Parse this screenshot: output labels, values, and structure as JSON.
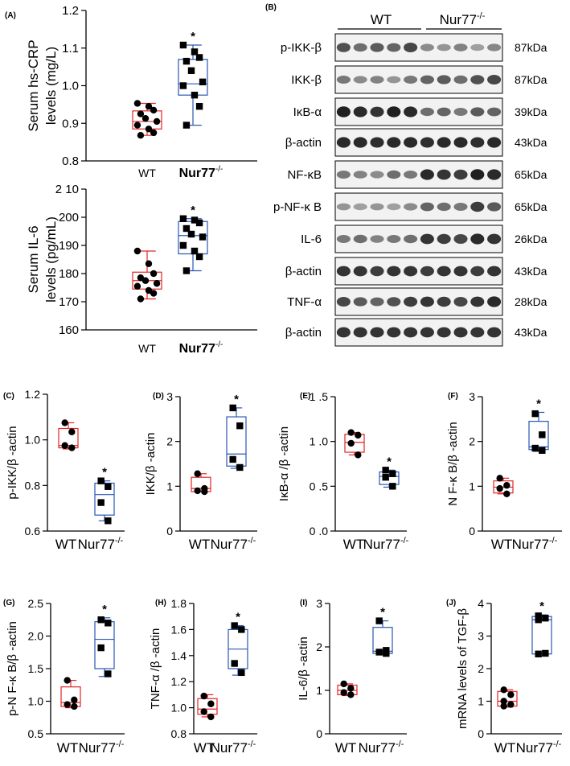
{
  "chart_data": [
    {
      "id": "A1",
      "panel_label": "(A)",
      "type": "box",
      "ylabel": [
        "Serum hs-CRP",
        "levels (mg/L)"
      ],
      "ylim": [
        0.8,
        1.2
      ],
      "yticks": [
        0.8,
        0.9,
        1.0,
        1.1,
        1.2
      ],
      "yticklabels": [
        "0.8",
        "0.9",
        "1.0",
        "1.1",
        "1.2"
      ],
      "categories": [
        "WT",
        "Nur77"
      ],
      "series": [
        {
          "category": "WT",
          "color": "#e32626",
          "marker": "circle",
          "box": {
            "q1": 0.885,
            "median": 0.905,
            "q3": 0.933,
            "whisker_low": 0.868,
            "whisker_high": 0.953
          },
          "points": [
            0.953,
            0.945,
            0.935,
            0.925,
            0.913,
            0.905,
            0.895,
            0.885,
            0.875,
            0.868
          ]
        },
        {
          "category": "Nur77",
          "color": "#2a56b5",
          "marker": "square",
          "box": {
            "q1": 0.975,
            "median": 1.005,
            "q3": 1.07,
            "whisker_low": 0.895,
            "whisker_high": 1.108
          },
          "points": [
            1.108,
            1.09,
            1.075,
            1.065,
            1.04,
            1.01,
            1.0,
            0.975,
            0.945,
            0.895
          ]
        }
      ],
      "significance": "*"
    },
    {
      "id": "A2",
      "panel_label": "",
      "type": "box",
      "ylabel": [
        "Serum IL-6",
        "levels (pg/mL)"
      ],
      "ylim": [
        160,
        210
      ],
      "yticks": [
        160,
        170,
        180,
        190,
        200,
        210
      ],
      "yticklabels": [
        "160",
        "170",
        "180",
        "190",
        "200",
        "2 10"
      ],
      "categories": [
        "WT",
        "Nur77"
      ],
      "series": [
        {
          "category": "WT",
          "color": "#e32626",
          "marker": "circle",
          "box": {
            "q1": 174.5,
            "median": 177.5,
            "q3": 180.5,
            "whisker_low": 171,
            "whisker_high": 188
          },
          "points": [
            188,
            183.5,
            180,
            178.5,
            177.5,
            176.5,
            175.5,
            174,
            173,
            171
          ]
        },
        {
          "category": "Nur77",
          "color": "#2a56b5",
          "marker": "square",
          "box": {
            "q1": 187,
            "median": 193.5,
            "q3": 198.5,
            "whisker_low": 181,
            "whisker_high": 199.5
          },
          "points": [
            199.5,
            199,
            198,
            196,
            194,
            193,
            190,
            188,
            186,
            181
          ]
        }
      ],
      "significance": "*"
    },
    {
      "id": "C",
      "panel_label": "(C)",
      "type": "box",
      "ylabel": [
        "p-IKK/β -actin"
      ],
      "ylim": [
        0.6,
        1.2
      ],
      "yticks": [
        0.6,
        0.8,
        1.0,
        1.2
      ],
      "yticklabels": [
        "0.6",
        "0.8",
        "1.0",
        "1.2"
      ],
      "categories": [
        "WT",
        "Nur77"
      ],
      "series": [
        {
          "category": "WT",
          "color": "#e32626",
          "marker": "circle",
          "box": {
            "q1": 0.965,
            "median": 0.975,
            "q3": 1.05,
            "whisker_low": 0.96,
            "whisker_high": 1.075
          },
          "points": [
            1.075,
            1.035,
            0.975,
            0.965
          ]
        },
        {
          "category": "Nur77",
          "color": "#2a56b5",
          "marker": "square",
          "box": {
            "q1": 0.67,
            "median": 0.76,
            "q3": 0.81,
            "whisker_low": 0.645,
            "whisker_high": 0.82
          },
          "points": [
            0.82,
            0.795,
            0.725,
            0.645
          ]
        }
      ],
      "significance": "*"
    },
    {
      "id": "D",
      "panel_label": "(D)",
      "type": "box",
      "ylabel": [
        "IKK/β -actin"
      ],
      "ylim": [
        0,
        3
      ],
      "yticks": [
        0,
        1,
        2,
        3
      ],
      "yticklabels": [
        "0",
        "1",
        "2",
        "3"
      ],
      "categories": [
        "WT",
        "Nur77"
      ],
      "series": [
        {
          "category": "WT",
          "color": "#e32626",
          "marker": "circle",
          "box": {
            "q1": 0.88,
            "median": 0.95,
            "q3": 1.2,
            "whisker_low": 0.88,
            "whisker_high": 1.28
          },
          "points": [
            1.28,
            0.95,
            0.9,
            0.88
          ]
        },
        {
          "category": "Nur77",
          "color": "#2a56b5",
          "marker": "square",
          "box": {
            "q1": 1.45,
            "median": 1.72,
            "q3": 2.55,
            "whisker_low": 1.4,
            "whisker_high": 2.75
          },
          "points": [
            2.75,
            2.35,
            1.6,
            1.42
          ]
        }
      ],
      "significance": "*"
    },
    {
      "id": "E",
      "panel_label": "(E)",
      "type": "box",
      "ylabel": [
        "IκB-α /β -actin"
      ],
      "ylim": [
        0,
        1.5
      ],
      "yticks": [
        0,
        0.5,
        1.0,
        1.5
      ],
      "yticklabels": [
        "0 .0",
        "0 .5",
        "1 .0",
        "1 .5"
      ],
      "categories": [
        "WT",
        "Nur77"
      ],
      "series": [
        {
          "category": "WT",
          "color": "#e32626",
          "marker": "circle",
          "box": {
            "q1": 0.88,
            "median": 0.99,
            "q3": 1.08,
            "whisker_low": 0.85,
            "whisker_high": 1.1
          },
          "points": [
            1.1,
            1.07,
            0.98,
            0.85
          ]
        },
        {
          "category": "Nur77",
          "color": "#2a56b5",
          "marker": "square",
          "box": {
            "q1": 0.52,
            "median": 0.61,
            "q3": 0.66,
            "whisker_low": 0.49,
            "whisker_high": 0.68
          },
          "points": [
            0.68,
            0.64,
            0.6,
            0.5
          ]
        }
      ],
      "significance": "*"
    },
    {
      "id": "F",
      "panel_label": "(F)",
      "type": "box",
      "ylabel": [
        "N F-κ B/β -actin"
      ],
      "ylim": [
        0,
        3
      ],
      "yticks": [
        0,
        1,
        2,
        3
      ],
      "yticklabels": [
        "0",
        "1",
        "2",
        "3"
      ],
      "categories": [
        "WT",
        "Nur77"
      ],
      "series": [
        {
          "category": "WT",
          "color": "#e32626",
          "marker": "circle",
          "box": {
            "q1": 0.85,
            "median": 0.98,
            "q3": 1.12,
            "whisker_low": 0.83,
            "whisker_high": 1.18
          },
          "points": [
            1.18,
            1.02,
            0.95,
            0.83
          ]
        },
        {
          "category": "Nur77",
          "color": "#2a56b5",
          "marker": "square",
          "box": {
            "q1": 1.82,
            "median": 1.88,
            "q3": 2.45,
            "whisker_low": 1.78,
            "whisker_high": 2.65
          },
          "points": [
            2.62,
            2.15,
            1.85,
            1.8
          ]
        }
      ],
      "significance": "*"
    },
    {
      "id": "G",
      "panel_label": "(G)",
      "type": "box",
      "ylabel": [
        "p-N F-κ B/β -actin"
      ],
      "ylim": [
        0.5,
        2.5
      ],
      "yticks": [
        0.5,
        1.0,
        1.5,
        2.0,
        2.5
      ],
      "yticklabels": [
        "0.5",
        "1.0",
        "1.5",
        "2.0",
        "2.5"
      ],
      "categories": [
        "WT",
        "Nur77"
      ],
      "series": [
        {
          "category": "WT",
          "color": "#e32626",
          "marker": "circle",
          "box": {
            "q1": 0.92,
            "median": 0.98,
            "q3": 1.22,
            "whisker_low": 0.9,
            "whisker_high": 1.32
          },
          "points": [
            1.32,
            1.02,
            0.95,
            0.92
          ]
        },
        {
          "category": "Nur77",
          "color": "#2a56b5",
          "marker": "square",
          "box": {
            "q1": 1.5,
            "median": 1.95,
            "q3": 2.22,
            "whisker_low": 1.38,
            "whisker_high": 2.28
          },
          "points": [
            2.25,
            2.2,
            1.82,
            1.42
          ]
        }
      ],
      "significance": "*"
    },
    {
      "id": "H",
      "panel_label": "(H)",
      "type": "box",
      "ylabel": [
        "TNF-α /β -actin"
      ],
      "ylim": [
        0.8,
        1.8
      ],
      "yticks": [
        0.8,
        1.0,
        1.2,
        1.4,
        1.6,
        1.8
      ],
      "yticklabels": [
        "0.8",
        "1.0",
        "1.2",
        "1.4",
        "1.6",
        "1.8"
      ],
      "categories": [
        "WT",
        "Nur77"
      ],
      "series": [
        {
          "category": "WT",
          "color": "#e32626",
          "marker": "circle",
          "box": {
            "q1": 0.95,
            "median": 0.99,
            "q3": 1.07,
            "whisker_low": 0.93,
            "whisker_high": 1.1
          },
          "points": [
            1.09,
            1.03,
            0.97,
            0.93
          ]
        },
        {
          "category": "Nur77",
          "color": "#2a56b5",
          "marker": "square",
          "box": {
            "q1": 1.3,
            "median": 1.45,
            "q3": 1.6,
            "whisker_low": 1.25,
            "whisker_high": 1.63
          },
          "points": [
            1.63,
            1.6,
            1.34,
            1.27
          ]
        }
      ],
      "significance": "*"
    },
    {
      "id": "I",
      "panel_label": "(I)",
      "type": "box",
      "ylabel": [
        "IL-6/β -actin"
      ],
      "ylim": [
        0,
        3
      ],
      "yticks": [
        0,
        1,
        2,
        3
      ],
      "yticklabels": [
        "0",
        "1",
        "2",
        "3"
      ],
      "categories": [
        "WT",
        "Nur77"
      ],
      "series": [
        {
          "category": "WT",
          "color": "#e32626",
          "marker": "circle",
          "box": {
            "q1": 0.9,
            "median": 1.0,
            "q3": 1.12,
            "whisker_low": 0.88,
            "whisker_high": 1.15
          },
          "points": [
            1.15,
            1.05,
            0.95,
            0.9
          ]
        },
        {
          "category": "Nur77",
          "color": "#2a56b5",
          "marker": "square",
          "box": {
            "q1": 1.85,
            "median": 1.9,
            "q3": 2.45,
            "whisker_low": 1.82,
            "whisker_high": 2.6
          },
          "points": [
            2.6,
            1.92,
            1.88,
            1.85
          ]
        }
      ],
      "significance": "*"
    },
    {
      "id": "J",
      "panel_label": "(J)",
      "type": "box",
      "ylabel": [
        "mRNA levels of TGF-β"
      ],
      "ylim": [
        0,
        4
      ],
      "yticks": [
        0,
        1,
        2,
        3,
        4
      ],
      "yticklabels": [
        "0",
        "1",
        "2",
        "3",
        "4"
      ],
      "categories": [
        "WT",
        "Nur77"
      ],
      "series": [
        {
          "category": "WT",
          "color": "#e32626",
          "marker": "circle",
          "box": {
            "q1": 0.85,
            "median": 1.0,
            "q3": 1.3,
            "whisker_low": 0.82,
            "whisker_high": 1.35
          },
          "points": [
            1.35,
            1.2,
            1.0,
            0.9,
            0.85
          ]
        },
        {
          "category": "Nur77",
          "color": "#2a56b5",
          "marker": "square",
          "box": {
            "q1": 2.45,
            "median": 3.5,
            "q3": 3.6,
            "whisker_low": 2.45,
            "whisker_high": 3.65
          },
          "points": [
            3.62,
            3.55,
            3.5,
            2.47,
            2.45
          ]
        }
      ],
      "significance": "*"
    }
  ],
  "blot": {
    "panel_label": "(B)",
    "groups": [
      {
        "label": "WT",
        "superscript": ""
      },
      {
        "label": "Nur77",
        "superscript": "-/-"
      }
    ],
    "rows": [
      {
        "name": "p-IKK-β",
        "kda": "87kDa",
        "intensity": [
          0.7,
          0.55,
          0.65,
          0.6,
          0.75,
          0.4,
          0.35,
          0.45,
          0.3,
          0.42
        ]
      },
      {
        "name": "IKK-β",
        "kda": "87kDa",
        "intensity": [
          0.5,
          0.4,
          0.45,
          0.35,
          0.5,
          0.6,
          0.65,
          0.55,
          0.7,
          0.75
        ]
      },
      {
        "name": "IκB-α",
        "kda": "39kDa",
        "intensity": [
          0.95,
          0.9,
          0.85,
          0.95,
          0.9,
          0.55,
          0.6,
          0.5,
          0.65,
          0.6
        ]
      },
      {
        "name": "β-actin",
        "kda": "43kDa",
        "intensity": [
          0.9,
          0.9,
          0.88,
          0.9,
          0.9,
          0.88,
          0.9,
          0.9,
          0.88,
          0.9
        ]
      },
      {
        "name": "NF-κB",
        "kda": "65kDa",
        "intensity": [
          0.5,
          0.45,
          0.4,
          0.55,
          0.5,
          0.9,
          0.85,
          0.8,
          0.95,
          0.9
        ]
      },
      {
        "name": "p-NF-κ B",
        "kda": "65kDa",
        "intensity": [
          0.35,
          0.3,
          0.35,
          0.3,
          0.4,
          0.6,
          0.55,
          0.5,
          0.8,
          0.65
        ]
      },
      {
        "name": "IL-6",
        "kda": "26kDa",
        "intensity": [
          0.5,
          0.55,
          0.45,
          0.5,
          0.55,
          0.85,
          0.8,
          0.75,
          0.9,
          0.85
        ]
      },
      {
        "name": "β-actin",
        "kda": "43kDa",
        "intensity": [
          0.85,
          0.85,
          0.8,
          0.85,
          0.85,
          0.8,
          0.85,
          0.85,
          0.8,
          0.85
        ]
      },
      {
        "name": "TNF-α",
        "kda": "28kDa",
        "intensity": [
          0.75,
          0.65,
          0.6,
          0.7,
          0.8,
          0.85,
          0.8,
          0.75,
          0.85,
          0.9
        ]
      },
      {
        "name": "β-actin",
        "kda": "43kDa",
        "intensity": [
          0.85,
          0.85,
          0.85,
          0.85,
          0.85,
          0.85,
          0.85,
          0.85,
          0.85,
          0.85
        ]
      }
    ]
  },
  "labels": {
    "superscript": "-/-"
  }
}
